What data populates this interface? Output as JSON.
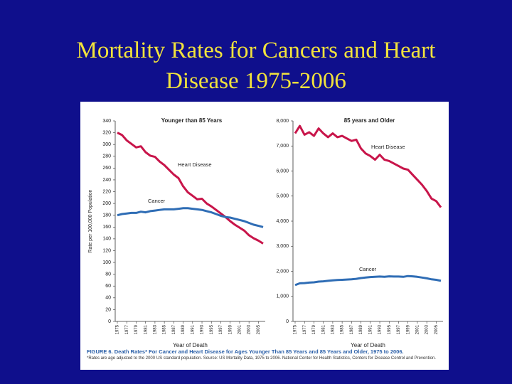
{
  "slide_title": "Mortality Rates for Cancers and Heart Disease 1975-2006",
  "caption": "FIGURE 6. Death Rates* For Cancer and Heart Disease for Ages Younger Than 85 Years and 85 Years and Older, 1975 to 2006.",
  "footnote": "*Rates are age adjusted to the 2000 US standard population. Source: US Mortality Data, 1975 to 2006. National Center for Health Statistics, Centers for Disease Control and Prevention.",
  "chart_data": [
    {
      "type": "line",
      "title": "Younger than 85 Years",
      "xlabel": "Year of Death",
      "ylabel": "Rate per 100,000 Population",
      "x": [
        1975,
        1976,
        1977,
        1978,
        1979,
        1980,
        1981,
        1982,
        1983,
        1984,
        1985,
        1986,
        1987,
        1988,
        1989,
        1990,
        1991,
        1992,
        1993,
        1994,
        1995,
        1996,
        1997,
        1998,
        1999,
        2000,
        2001,
        2002,
        2003,
        2004,
        2005,
        2006
      ],
      "xlim": [
        1975,
        2006
      ],
      "xticks": [
        1975,
        1977,
        1979,
        1981,
        1983,
        1985,
        1987,
        1989,
        1991,
        1993,
        1995,
        1997,
        1999,
        2001,
        2003,
        2005
      ],
      "ylim": [
        0,
        340
      ],
      "yticks": [
        0,
        20,
        40,
        60,
        80,
        100,
        120,
        140,
        160,
        180,
        200,
        220,
        240,
        260,
        280,
        300,
        320,
        340
      ],
      "series": [
        {
          "name": "Heart Disease",
          "color": "#c8154a",
          "values": [
            320,
            316,
            307,
            301,
            295,
            297,
            287,
            281,
            279,
            271,
            265,
            257,
            249,
            243,
            229,
            219,
            213,
            207,
            208,
            200,
            195,
            189,
            183,
            177,
            170,
            164,
            159,
            154,
            146,
            141,
            137,
            132
          ]
        },
        {
          "name": "Cancer",
          "color": "#2f6db5",
          "values": [
            180,
            182,
            183,
            184,
            184,
            186,
            185,
            187,
            188,
            189,
            190,
            190,
            190,
            191,
            192,
            192,
            191,
            190,
            189,
            187,
            185,
            182,
            179,
            177,
            176,
            174,
            172,
            170,
            167,
            164,
            162,
            160
          ]
        }
      ]
    },
    {
      "type": "line",
      "title": "85 years and Older",
      "xlabel": "Year of Death",
      "x": [
        1975,
        1976,
        1977,
        1978,
        1979,
        1980,
        1981,
        1982,
        1983,
        1984,
        1985,
        1986,
        1987,
        1988,
        1989,
        1990,
        1991,
        1992,
        1993,
        1994,
        1995,
        1996,
        1997,
        1998,
        1999,
        2000,
        2001,
        2002,
        2003,
        2004,
        2005,
        2006
      ],
      "xlim": [
        1975,
        2006
      ],
      "xticks": [
        1975,
        1977,
        1979,
        1981,
        1983,
        1985,
        1987,
        1989,
        1991,
        1993,
        1995,
        1997,
        1999,
        2001,
        2003,
        2005
      ],
      "ylim": [
        0,
        8000
      ],
      "yticks": [
        0,
        {
          "value": 1000,
          "label": "1,000"
        },
        {
          "value": 2000,
          "label": "2,000"
        },
        {
          "value": 3000,
          "label": "3,000"
        },
        {
          "value": 4000,
          "label": "4,000"
        },
        {
          "value": 5000,
          "label": "5,000"
        },
        {
          "value": 6000,
          "label": "6,000"
        },
        {
          "value": 7000,
          "label": "7,000"
        },
        {
          "value": 8000,
          "label": "8,000"
        }
      ],
      "series": [
        {
          "name": "Heart Disease",
          "color": "#c8154a",
          "values": [
            7500,
            7800,
            7450,
            7550,
            7400,
            7700,
            7500,
            7350,
            7500,
            7350,
            7400,
            7300,
            7200,
            7250,
            6900,
            6700,
            6600,
            6450,
            6650,
            6450,
            6400,
            6300,
            6200,
            6100,
            6050,
            5850,
            5650,
            5450,
            5200,
            4900,
            4800,
            4550
          ]
        },
        {
          "name": "Cancer",
          "color": "#2f6db5",
          "values": [
            1450,
            1520,
            1530,
            1550,
            1560,
            1590,
            1600,
            1620,
            1640,
            1650,
            1660,
            1670,
            1680,
            1700,
            1730,
            1750,
            1770,
            1780,
            1790,
            1780,
            1800,
            1790,
            1790,
            1780,
            1810,
            1800,
            1780,
            1750,
            1720,
            1680,
            1660,
            1620
          ]
        }
      ]
    }
  ]
}
